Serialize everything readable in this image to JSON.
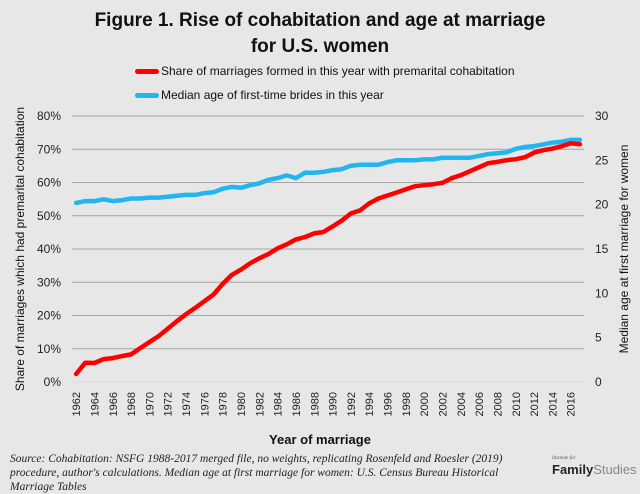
{
  "chart_data": {
    "type": "line",
    "title": "Figure 1. Rise of cohabitation and age at marriage for U.S. women",
    "title_lines": [
      "Figure 1. Rise of cohabitation and age at marriage",
      "for U.S. women"
    ],
    "xlabel": "Year of marriage",
    "ylabel_left": "Share of marriages which had premarital cohabitation",
    "ylabel_right": "Median age at first marriage for women",
    "ylim_left": [
      0,
      80
    ],
    "ylim_right": [
      0,
      30
    ],
    "yticks_left": [
      "0%",
      "10%",
      "20%",
      "30%",
      "40%",
      "50%",
      "60%",
      "70%",
      "80%"
    ],
    "yticks_right": [
      "0",
      "5",
      "10",
      "15",
      "20",
      "25",
      "30"
    ],
    "xticks": [
      "1962",
      "1964",
      "1966",
      "1968",
      "1970",
      "1972",
      "1974",
      "1976",
      "1978",
      "1980",
      "1982",
      "1984",
      "1986",
      "1988",
      "1990",
      "1992",
      "1994",
      "1996",
      "1998",
      "2000",
      "2002",
      "2004",
      "2006",
      "2008",
      "2010",
      "2012",
      "2014",
      "2016"
    ],
    "grid": true,
    "legend_position": "top",
    "x": [
      1962,
      1963,
      1964,
      1965,
      1966,
      1967,
      1968,
      1969,
      1970,
      1971,
      1972,
      1973,
      1974,
      1975,
      1976,
      1977,
      1978,
      1979,
      1980,
      1981,
      1982,
      1983,
      1984,
      1985,
      1986,
      1987,
      1988,
      1989,
      1990,
      1991,
      1992,
      1993,
      1994,
      1995,
      1996,
      1997,
      1998,
      1999,
      2000,
      2001,
      2002,
      2003,
      2004,
      2005,
      2006,
      2007,
      2008,
      2009,
      2010,
      2011,
      2012,
      2013,
      2014,
      2015,
      2016,
      2017
    ],
    "series": [
      {
        "name": "Share of marriages formed in this year with premarital cohabitation",
        "axis": "left",
        "color": "#ff0000",
        "values": [
          2.4,
          5.8,
          5.7,
          6.9,
          7.2,
          7.8,
          8.3,
          10.2,
          12.0,
          13.8,
          16.0,
          18.3,
          20.4,
          22.3,
          24.3,
          26.3,
          29.5,
          32.2,
          33.8,
          35.7,
          37.2,
          38.5,
          40.2,
          41.4,
          42.9,
          43.6,
          44.7,
          45.1,
          46.8,
          48.5,
          50.7,
          51.6,
          53.7,
          55.2,
          56.1,
          57.0,
          58.0,
          58.9,
          59.2,
          59.5,
          59.9,
          61.3,
          62.2,
          63.4,
          64.6,
          65.8,
          66.2,
          66.7,
          67.0,
          67.6,
          69.0,
          69.7,
          70.2,
          70.9,
          71.8,
          71.5
        ]
      },
      {
        "name": "Median age of first-time brides in this year",
        "axis": "right",
        "color": "#22b5f0",
        "values": [
          20.2,
          20.4,
          20.4,
          20.6,
          20.4,
          20.5,
          20.7,
          20.7,
          20.8,
          20.8,
          20.9,
          21.0,
          21.1,
          21.1,
          21.3,
          21.4,
          21.8,
          22.0,
          21.9,
          22.2,
          22.4,
          22.8,
          23.0,
          23.3,
          23.0,
          23.6,
          23.6,
          23.7,
          23.9,
          24.0,
          24.4,
          24.5,
          24.5,
          24.5,
          24.8,
          25.0,
          25.0,
          25.0,
          25.1,
          25.1,
          25.3,
          25.3,
          25.3,
          25.3,
          25.5,
          25.7,
          25.8,
          25.9,
          26.3,
          26.5,
          26.6,
          26.8,
          27.0,
          27.1,
          27.3,
          27.3
        ]
      }
    ]
  },
  "legend": [
    {
      "label": "Share of marriages formed in this year with premarital cohabitation",
      "color": "#ff0000"
    },
    {
      "label": "Median age of first-time brides in this year",
      "color": "#22b5f0"
    }
  ],
  "source": "Source: Cohabitation: NSFG 1988-2017 merged file, no weights, replicating Rosenfeld and Roesler (2019) procedure, author's calculations. Median age at first marriage for women: U.S. Census Bureau Historical Marriage Tables",
  "logo": {
    "small": "Institute for",
    "bold": "Family",
    "light": "Studies"
  }
}
